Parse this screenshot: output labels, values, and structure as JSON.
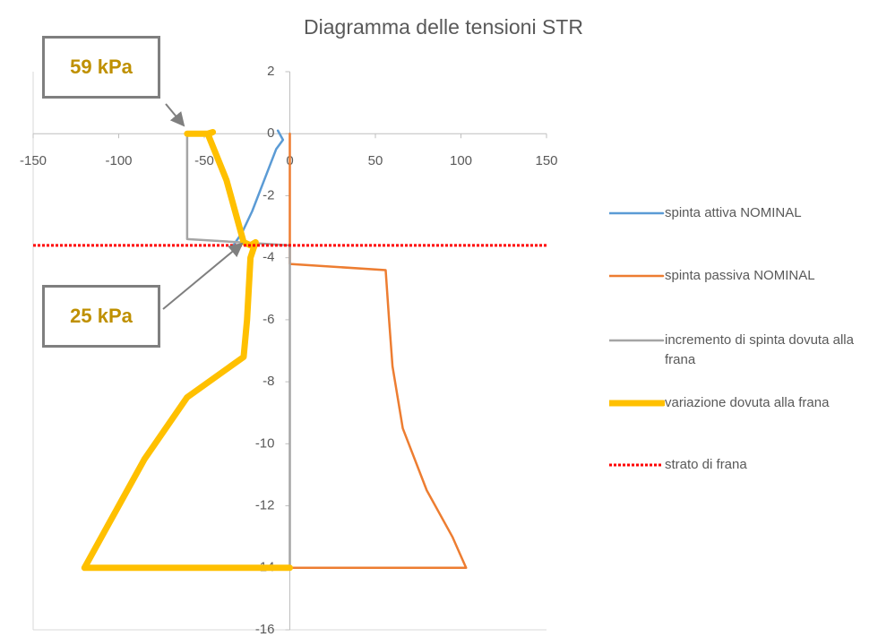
{
  "chart_data": {
    "type": "line",
    "title": "Diagramma delle tensioni STR",
    "xlim": [
      -150,
      150
    ],
    "xticks": [
      -150,
      -100,
      -50,
      0,
      50,
      100,
      150
    ],
    "ylim": [
      -16,
      2
    ],
    "yticks": [
      2,
      0,
      -2,
      -4,
      -6,
      -8,
      -10,
      -12,
      -14,
      -16
    ],
    "grid": false,
    "legend": "right",
    "annotations": [
      "59 kPa",
      "25 kPa"
    ],
    "series": [
      {
        "name": "spinta attiva NOMINAL",
        "color": "#5b9bd5",
        "width": 2.5,
        "x": [
          -7,
          -4,
          -8,
          -15,
          -22,
          -28,
          -33
        ],
        "values": [
          0.1,
          -0.2,
          -0.5,
          -1.5,
          -2.5,
          -3.2,
          -3.6
        ]
      },
      {
        "name": "spinta passiva NOMINAL",
        "color": "#ed7d31",
        "width": 2.5,
        "x": [
          0,
          0,
          56,
          58,
          60,
          66,
          80,
          95,
          103,
          0
        ],
        "values": [
          0,
          -4.2,
          -4.4,
          -6,
          -7.5,
          -9.5,
          -11.5,
          -13,
          -14,
          -14
        ]
      },
      {
        "name": "incremento di spinta dovuta alla frana",
        "color": "#a5a5a5",
        "width": 2.5,
        "x": [
          -60,
          -60,
          -30,
          0,
          0
        ],
        "values": [
          0,
          -3.4,
          -3.5,
          -3.6,
          -14
        ]
      },
      {
        "name": "variazione dovuta alla frana",
        "color": "#ffc000",
        "width": 7,
        "x": [
          -60,
          -47,
          -45,
          -48,
          -37,
          -27,
          -23,
          -20,
          -23,
          -25,
          -27,
          -60,
          -85,
          -105,
          -120,
          0
        ],
        "values": [
          0,
          0,
          0.05,
          0,
          -1.5,
          -3.5,
          -3.6,
          -3.5,
          -4,
          -6,
          -7.2,
          -8.5,
          -10.5,
          -12.5,
          -14,
          -14
        ]
      },
      {
        "name": "strato di frana",
        "color": "#ff0000",
        "width": 3,
        "dash": true,
        "x": [
          -150,
          150
        ],
        "values": [
          -3.6,
          -3.6
        ]
      }
    ]
  }
}
